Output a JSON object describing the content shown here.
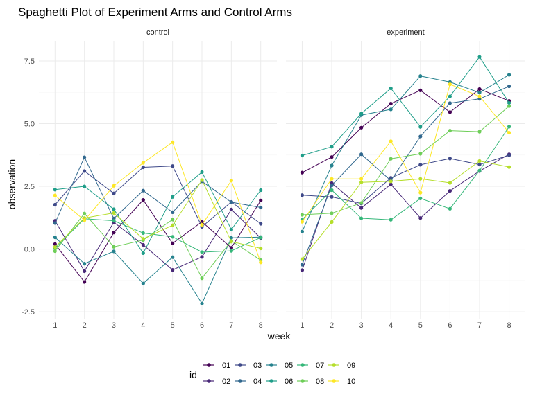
{
  "chart_data": {
    "type": "line",
    "title": "Spaghetti Plot of Experiment Arms and Control Arms",
    "xlabel": "week",
    "ylabel": "observation",
    "x": [
      1,
      2,
      3,
      4,
      5,
      6,
      7,
      8
    ],
    "ylim": [
      -2.8,
      8.3
    ],
    "yticks": [
      -2.5,
      0.0,
      2.5,
      5.0,
      7.5
    ],
    "ytick_labels": [
      "-2.5",
      "0.0",
      "2.5",
      "5.0",
      "7.5"
    ],
    "xtick_labels": [
      "1",
      "2",
      "3",
      "4",
      "5",
      "6",
      "7",
      "8"
    ],
    "grid": true,
    "legend_title": "id",
    "legend_position": "bottom",
    "panels": [
      {
        "label": "control",
        "series": [
          {
            "name": "01",
            "values": [
              0.2,
              -1.31,
              0.66,
              1.96,
              0.23,
              1.09,
              0.05,
              1.94
            ]
          },
          {
            "name": "02",
            "values": [
              1.13,
              -0.88,
              1.07,
              0.17,
              -0.83,
              -0.31,
              1.58,
              0.44
            ]
          },
          {
            "name": "03",
            "values": [
              1.77,
              3.11,
              2.22,
              3.26,
              3.31,
              0.89,
              1.88,
              1.01
            ]
          },
          {
            "name": "04",
            "values": [
              1.04,
              3.66,
              1.22,
              2.33,
              1.47,
              2.7,
              1.87,
              1.66
            ]
          },
          {
            "name": "05",
            "values": [
              0.47,
              -0.58,
              -0.09,
              -1.37,
              -0.32,
              -2.17,
              0.45,
              0.48
            ]
          },
          {
            "name": "06",
            "values": [
              2.37,
              2.5,
              1.59,
              -0.16,
              2.08,
              3.07,
              0.78,
              2.35
            ]
          },
          {
            "name": "07",
            "values": [
              0.03,
              1.21,
              1.13,
              0.64,
              0.49,
              -0.12,
              -0.07,
              0.46
            ]
          },
          {
            "name": "08",
            "values": [
              -0.08,
              1.42,
              0.09,
              0.36,
              1.18,
              -1.16,
              0.33,
              -0.44
            ]
          },
          {
            "name": "09",
            "values": [
              0.08,
              1.24,
              1.44,
              0.41,
              0.95,
              2.75,
              0.3,
              0.03
            ]
          },
          {
            "name": "10",
            "values": [
              2.14,
              1.15,
              2.52,
              3.44,
              4.26,
              0.97,
              2.73,
              -0.53
            ]
          }
        ]
      },
      {
        "label": "experiment",
        "series": [
          {
            "name": "01",
            "values": [
              3.05,
              3.67,
              4.84,
              5.8,
              6.33,
              5.46,
              6.38,
              5.91
            ]
          },
          {
            "name": "02",
            "values": [
              -0.84,
              2.63,
              1.64,
              2.58,
              1.24,
              2.32,
              3.11,
              3.78
            ]
          },
          {
            "name": "03",
            "values": [
              2.15,
              2.08,
              1.82,
              2.84,
              3.36,
              3.61,
              3.37,
              3.74
            ]
          },
          {
            "name": "04",
            "values": [
              -0.62,
              2.54,
              3.78,
              2.73,
              4.49,
              5.82,
              5.99,
              6.49
            ]
          },
          {
            "name": "05",
            "values": [
              0.7,
              3.33,
              5.34,
              5.57,
              6.9,
              6.66,
              6.24,
              6.95
            ]
          },
          {
            "name": "06",
            "values": [
              3.73,
              4.08,
              5.4,
              6.41,
              4.87,
              6.09,
              7.66,
              5.83
            ]
          },
          {
            "name": "07",
            "values": [
              1.18,
              2.35,
              1.23,
              1.17,
              2.02,
              1.61,
              3.13,
              4.88
            ]
          },
          {
            "name": "08",
            "values": [
              1.37,
              1.43,
              1.84,
              3.6,
              3.8,
              4.72,
              4.68,
              5.7
            ]
          },
          {
            "name": "09",
            "values": [
              -0.4,
              1.08,
              2.66,
              2.7,
              2.8,
              2.64,
              3.51,
              3.27
            ]
          },
          {
            "name": "10",
            "values": [
              1.09,
              2.8,
              2.8,
              4.3,
              2.25,
              6.57,
              6.09,
              4.64
            ]
          }
        ]
      }
    ],
    "colors": {
      "01": "#440154",
      "02": "#482878",
      "03": "#3e4989",
      "04": "#31688e",
      "05": "#26828e",
      "06": "#1f9e89",
      "07": "#35b779",
      "08": "#6ece58",
      "09": "#b5de2b",
      "10": "#fde725"
    }
  }
}
